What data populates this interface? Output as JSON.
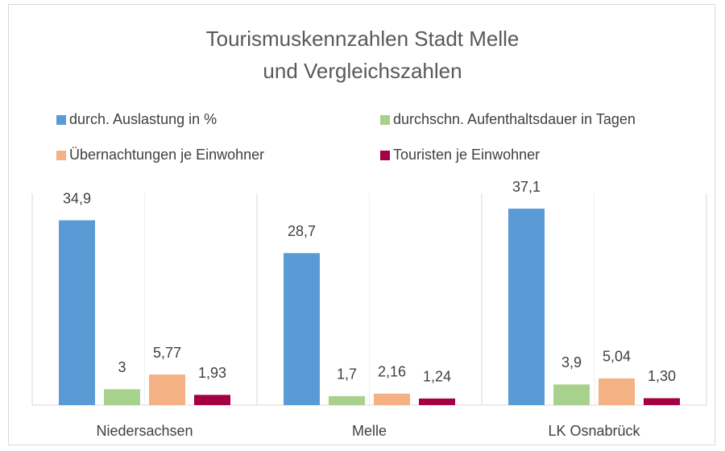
{
  "chart_data": {
    "type": "bar",
    "title": [
      "Tourismuskennzahlen Stadt Melle",
      "und Vergleichszahlen"
    ],
    "categories": [
      "Niedersachsen",
      "Melle",
      "LK Osnabrück"
    ],
    "series": [
      {
        "name": "durch. Auslastung in %",
        "color": "#5b9bd5",
        "values": [
          34.9,
          28.7,
          37.1
        ],
        "value_labels": [
          "34,9",
          "28,7",
          "37,1"
        ]
      },
      {
        "name": "durchschn. Aufenthaltsdauer in Tagen",
        "color": "#a9d18e",
        "values": [
          3,
          1.7,
          3.9
        ],
        "value_labels": [
          "3",
          "1,7",
          "3,9"
        ]
      },
      {
        "name": "Übernachtungen je Einwohner",
        "color": "#f4b183",
        "values": [
          5.77,
          2.16,
          5.04
        ],
        "value_labels": [
          "5,77",
          "2,16",
          "5,04"
        ]
      },
      {
        "name": "Touristen je Einwohner",
        "color": "#a50044",
        "values": [
          1.93,
          1.24,
          1.3
        ],
        "value_labels": [
          "1,93",
          "1,24",
          "1,30"
        ]
      }
    ],
    "ylim": [
      0,
      40
    ]
  }
}
